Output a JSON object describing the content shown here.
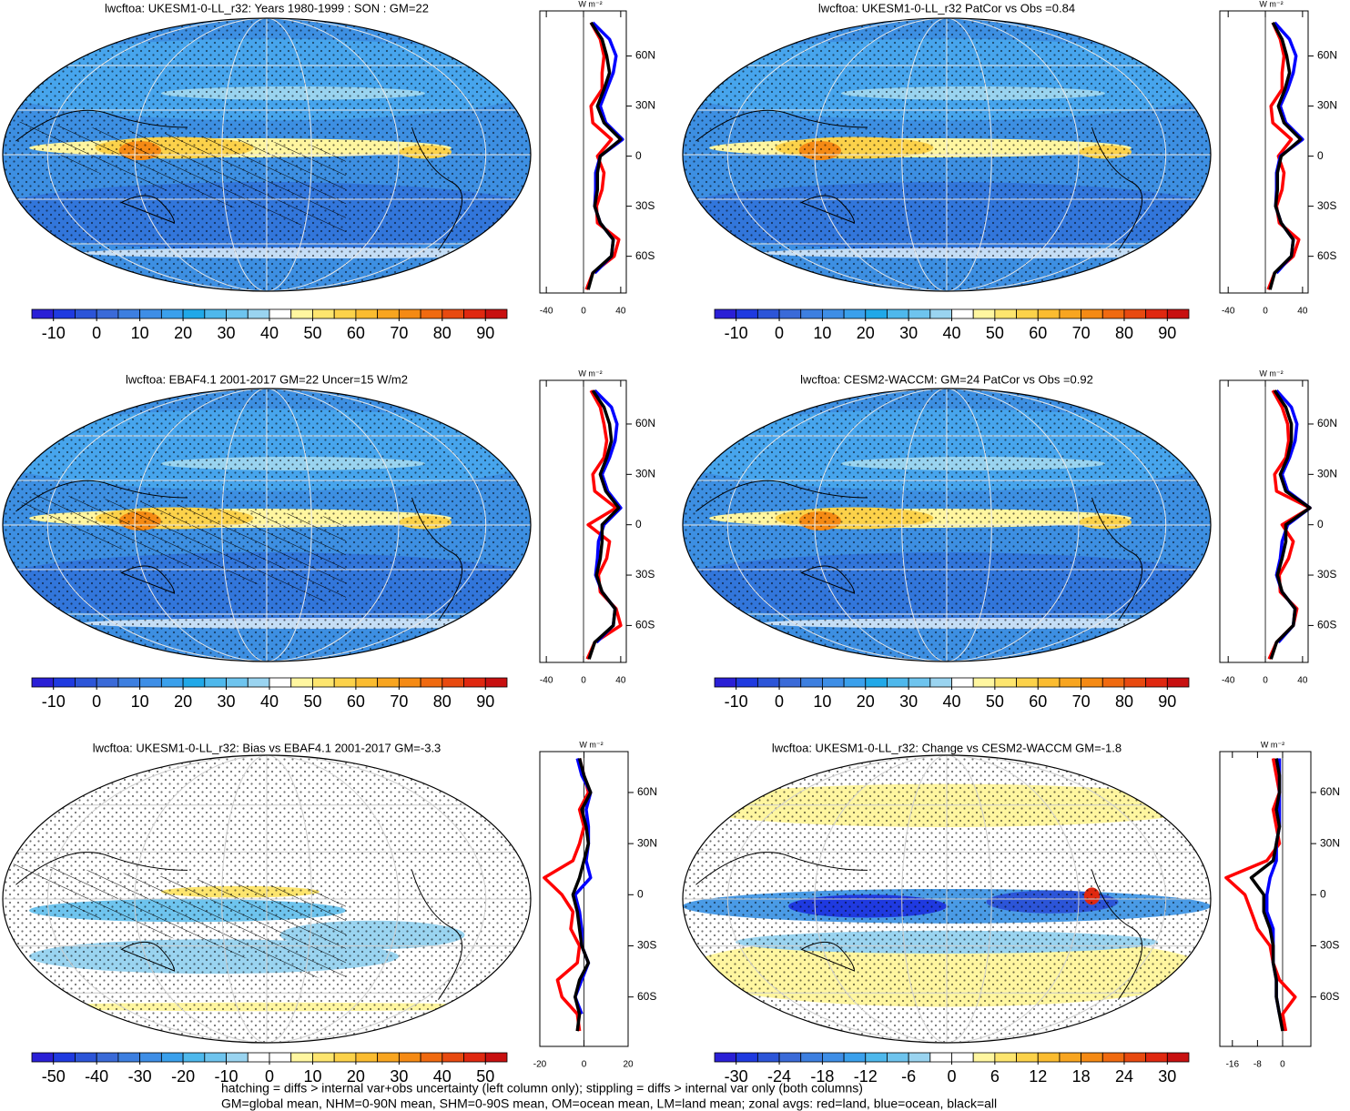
{
  "chart_data": [
    {
      "type": "map",
      "title": "lwcftoa: UKESM1-0-LL_r32: Years 1980-1999 : SON : GM=22",
      "colorbar": {
        "lim": [
          -15,
          95
        ],
        "ticks": [
          -10,
          0,
          10,
          20,
          30,
          40,
          50,
          60,
          70,
          80,
          90
        ],
        "colors": [
          "#2a1fd6",
          "#1f3ae0",
          "#2c55d8",
          "#3a6ad8",
          "#3d7fe0",
          "#3e8ee6",
          "#3aa0ec",
          "#20a8e8",
          "#4eb8ec",
          "#6ec4ee",
          "#9ad4f0",
          "#ffffff",
          "#fff6a0",
          "#fde56e",
          "#fcd24a",
          "#fbbc30",
          "#f8a520",
          "#f58a14",
          "#f06a10",
          "#e84a10",
          "#e02810",
          "#c81010"
        ]
      },
      "zonal": {
        "type": "line",
        "unit": "W m⁻²",
        "y": [
          -80,
          -70,
          -60,
          -50,
          -40,
          -30,
          -20,
          -10,
          0,
          10,
          20,
          30,
          40,
          50,
          60,
          70,
          80
        ],
        "xlim": [
          -47,
          46
        ],
        "xticks": [
          -40,
          0,
          40
        ],
        "ylim": [
          -82,
          87
        ],
        "yticks": [
          {
            "value": 60,
            "label": "60N"
          },
          {
            "value": 30,
            "label": "30N"
          },
          0,
          {
            "value": -30,
            "label": "30S"
          },
          {
            "value": -60,
            "label": "60S"
          }
        ],
        "series": [
          {
            "color": "#ff0000",
            "values": [
              3,
              10,
              33,
              38,
              15,
              14,
              20,
              22,
              15,
              30,
              10,
              8,
              20,
              20,
              22,
              18,
              8
            ]
          },
          {
            "color": "#0000ff",
            "values": [
              null,
              12,
              30,
              32,
              18,
              12,
              13,
              13,
              18,
              42,
              24,
              18,
              25,
              32,
              35,
              28,
              10
            ]
          },
          {
            "color": "#000000",
            "values": [
              5,
              10,
              30,
              32,
              18,
              12,
              15,
              15,
              18,
              40,
              22,
              15,
              22,
              28,
              25,
              20,
              8
            ]
          }
        ]
      }
    },
    {
      "type": "map",
      "title": "lwcftoa: UKESM1-0-LL_r32 PatCor vs Obs =0.84",
      "colorbar": {
        "lim": [
          -15,
          95
        ],
        "ticks": [
          -10,
          0,
          10,
          20,
          30,
          40,
          50,
          60,
          70,
          80,
          90
        ],
        "colors": [
          "#2a1fd6",
          "#1f3ae0",
          "#2c55d8",
          "#3a6ad8",
          "#3d7fe0",
          "#3e8ee6",
          "#3aa0ec",
          "#20a8e8",
          "#4eb8ec",
          "#6ec4ee",
          "#9ad4f0",
          "#ffffff",
          "#fff6a0",
          "#fde56e",
          "#fcd24a",
          "#fbbc30",
          "#f8a520",
          "#f58a14",
          "#f06a10",
          "#e84a10",
          "#e02810",
          "#c81010"
        ]
      },
      "zonal": {
        "type": "line",
        "unit": "W m⁻²",
        "y": [
          -80,
          -70,
          -60,
          -50,
          -40,
          -30,
          -20,
          -10,
          0,
          10,
          20,
          30,
          40,
          50,
          60,
          70,
          80
        ],
        "xlim": [
          -49,
          46
        ],
        "xticks": [
          -40,
          0,
          40
        ],
        "ylim": [
          -82,
          87
        ],
        "yticks": [
          {
            "value": 60,
            "label": "60N"
          },
          {
            "value": 30,
            "label": "30N"
          },
          0,
          {
            "value": -30,
            "label": "30S"
          },
          {
            "value": -60,
            "label": "60S"
          }
        ],
        "series": [
          {
            "color": "#ff0000",
            "values": [
              3,
              10,
              30,
              36,
              15,
              12,
              18,
              20,
              14,
              28,
              8,
              6,
              18,
              18,
              20,
              16,
              8
            ]
          },
          {
            "color": "#0000ff",
            "values": [
              null,
              12,
              28,
              30,
              17,
              11,
              12,
              12,
              16,
              40,
              22,
              16,
              24,
              30,
              33,
              26,
              10
            ]
          },
          {
            "color": "#000000",
            "values": [
              5,
              10,
              28,
              30,
              17,
              11,
              13,
              13,
              17,
              38,
              20,
              14,
              21,
              26,
              23,
              18,
              8
            ]
          }
        ]
      }
    },
    {
      "type": "map",
      "title": "lwcftoa: EBAF4.1 2001-2017 GM=22 Uncer=15 W/m2",
      "colorbar": {
        "lim": [
          -15,
          95
        ],
        "ticks": [
          -10,
          0,
          10,
          20,
          30,
          40,
          50,
          60,
          70,
          80,
          90
        ],
        "colors": [
          "#2a1fd6",
          "#1f3ae0",
          "#2c55d8",
          "#3a6ad8",
          "#3d7fe0",
          "#3e8ee6",
          "#3aa0ec",
          "#20a8e8",
          "#4eb8ec",
          "#6ec4ee",
          "#9ad4f0",
          "#ffffff",
          "#fff6a0",
          "#fde56e",
          "#fcd24a",
          "#fbbc30",
          "#f8a520",
          "#f58a14",
          "#f06a10",
          "#e84a10",
          "#e02810",
          "#c81010"
        ]
      },
      "zonal": {
        "type": "line",
        "unit": "W m⁻²",
        "y": [
          -80,
          -70,
          -60,
          -50,
          -40,
          -30,
          -20,
          -10,
          0,
          10,
          20,
          30,
          40,
          50,
          60,
          70,
          80
        ],
        "xlim": [
          -47,
          46
        ],
        "xticks": [
          -40,
          0,
          40
        ],
        "ylim": [
          -82,
          86
        ],
        "yticks": [
          {
            "value": 60,
            "label": "60N"
          },
          {
            "value": 30,
            "label": "30N"
          },
          0,
          {
            "value": -30,
            "label": "30S"
          },
          {
            "value": -60,
            "label": "60S"
          }
        ],
        "series": [
          {
            "color": "#ff0000",
            "values": [
              4,
              12,
              40,
              35,
              18,
              16,
              25,
              28,
              5,
              35,
              12,
              10,
              22,
              25,
              22,
              18,
              8
            ]
          },
          {
            "color": "#0000ff",
            "values": [
              null,
              14,
              32,
              34,
              20,
              13,
              15,
              16,
              22,
              40,
              26,
              20,
              28,
              34,
              36,
              30,
              12
            ]
          },
          {
            "color": "#000000",
            "values": [
              6,
              12,
              32,
              34,
              20,
              14,
              18,
              20,
              20,
              38,
              24,
              18,
              25,
              30,
              28,
              22,
              10
            ]
          }
        ]
      }
    },
    {
      "type": "map",
      "title": "lwcftoa: CESM2-WACCM: GM=24 PatCor vs Obs =0.92",
      "colorbar": {
        "lim": [
          -15,
          95
        ],
        "ticks": [
          -10,
          0,
          10,
          20,
          30,
          40,
          50,
          60,
          70,
          80,
          90
        ],
        "colors": [
          "#2a1fd6",
          "#1f3ae0",
          "#2c55d8",
          "#3a6ad8",
          "#3d7fe0",
          "#3e8ee6",
          "#3aa0ec",
          "#20a8e8",
          "#4eb8ec",
          "#6ec4ee",
          "#9ad4f0",
          "#ffffff",
          "#fff6a0",
          "#fde56e",
          "#fcd24a",
          "#fbbc30",
          "#f8a520",
          "#f58a14",
          "#f06a10",
          "#e84a10",
          "#e02810",
          "#c81010"
        ]
      },
      "zonal": {
        "type": "line",
        "unit": "W m⁻²",
        "y": [
          -80,
          -70,
          -60,
          -50,
          -40,
          -30,
          -20,
          -10,
          0,
          10,
          20,
          30,
          40,
          50,
          60,
          70,
          80
        ],
        "xlim": [
          -49,
          46
        ],
        "xticks": [
          -40,
          0,
          40
        ],
        "ylim": [
          -82,
          86
        ],
        "yticks": [
          {
            "value": 60,
            "label": "60N"
          },
          {
            "value": 30,
            "label": "30N"
          },
          0,
          {
            "value": -30,
            "label": "30S"
          },
          {
            "value": -60,
            "label": "60S"
          }
        ],
        "series": [
          {
            "color": "#ff0000",
            "values": [
              4,
              12,
              30,
              34,
              16,
              15,
              25,
              30,
              18,
              48,
              12,
              10,
              22,
              25,
              24,
              18,
              8
            ]
          },
          {
            "color": "#0000ff",
            "values": [
              null,
              14,
              30,
              32,
              18,
              12,
              16,
              18,
              24,
              48,
              24,
              18,
              26,
              32,
              34,
              28,
              12
            ]
          },
          {
            "color": "#000000",
            "values": [
              6,
              12,
              30,
              32,
              18,
              13,
              18,
              22,
              22,
              48,
              22,
              16,
              24,
              28,
              28,
              22,
              10
            ]
          }
        ]
      }
    },
    {
      "type": "map",
      "title": "lwcftoa: UKESM1-0-LL_r32: Bias vs EBAF4.1 2001-2017  GM=-3.3",
      "colorbar": {
        "lim": [
          -55,
          55
        ],
        "ticks": [
          -50,
          -40,
          -30,
          -20,
          -10,
          0,
          10,
          20,
          30,
          40,
          50
        ],
        "colors": [
          "#2a1fd6",
          "#1f3ae0",
          "#2c55d8",
          "#3a6ad8",
          "#3d7fe0",
          "#3e8ee6",
          "#3aa0ec",
          "#4eb8ec",
          "#6ec4ee",
          "#9ad4f0",
          "#ffffff",
          "#ffffff",
          "#fff6a0",
          "#fde56e",
          "#fcd24a",
          "#fbbc30",
          "#f8a520",
          "#f58a14",
          "#f06a10",
          "#e84a10",
          "#e02810",
          "#c81010"
        ]
      },
      "zonal": {
        "type": "line",
        "unit": "W m⁻²",
        "y": [
          -80,
          -70,
          -60,
          -50,
          -40,
          -30,
          -20,
          -10,
          0,
          10,
          20,
          30,
          40,
          50,
          60,
          70,
          80
        ],
        "xlim": [
          -20,
          20
        ],
        "xticks": [
          -20,
          0,
          20
        ],
        "ylim": [
          -89,
          84
        ],
        "yticks": [
          {
            "value": 60,
            "label": "60N"
          },
          {
            "value": 30,
            "label": "30N"
          },
          0,
          {
            "value": -30,
            "label": "30S"
          },
          {
            "value": -60,
            "label": "60S"
          }
        ],
        "series": [
          {
            "color": "#ff0000",
            "values": [
              -2,
              -3,
              -10,
              -12,
              -3,
              -2,
              -6,
              -5,
              -10,
              -18,
              -5,
              -2,
              0,
              -2,
              2,
              0,
              -2
            ]
          },
          {
            "color": "#0000ff",
            "values": [
              null,
              -1,
              -4,
              -1,
              2,
              -1,
              -1,
              -2,
              -4,
              3,
              1,
              2,
              2,
              1,
              3,
              -1,
              -3
            ]
          },
          {
            "color": "#000000",
            "values": [
              -3,
              -2,
              -4,
              -2,
              2,
              -1,
              -2,
              -3,
              -5,
              -2,
              0,
              2,
              1,
              -1,
              3,
              0,
              -2
            ]
          }
        ]
      }
    },
    {
      "type": "map",
      "title": "lwcftoa: UKESM1-0-LL_r32: Change vs CESM2-WACCM GM=-1.8",
      "colorbar": {
        "lim": [
          -33,
          33
        ],
        "ticks": [
          -30,
          -24,
          -18,
          -12,
          -6,
          0,
          6,
          12,
          18,
          24,
          30
        ],
        "colors": [
          "#2a1fd6",
          "#1f3ae0",
          "#2c55d8",
          "#3a6ad8",
          "#3d7fe0",
          "#3e8ee6",
          "#3aa0ec",
          "#4eb8ec",
          "#6ec4ee",
          "#9ad4f0",
          "#ffffff",
          "#ffffff",
          "#fff6a0",
          "#fde56e",
          "#fcd24a",
          "#fbbc30",
          "#f8a520",
          "#f58a14",
          "#f06a10",
          "#e84a10",
          "#e02810",
          "#c81010"
        ]
      },
      "zonal": {
        "type": "line",
        "unit": "W m⁻²",
        "y": [
          -80,
          -70,
          -60,
          -50,
          -40,
          -30,
          -20,
          -10,
          0,
          10,
          20,
          30,
          40,
          50,
          60,
          70,
          80
        ],
        "xlim": [
          -20,
          9
        ],
        "xticks": [
          -16,
          -8,
          0
        ],
        "ylim": [
          -89,
          84
        ],
        "yticks": [
          {
            "value": 60,
            "label": "60N"
          },
          {
            "value": 30,
            "label": "30N"
          },
          0,
          {
            "value": -30,
            "label": "30S"
          },
          {
            "value": -60,
            "label": "60S"
          }
        ],
        "series": [
          {
            "color": "#ff0000",
            "values": [
              1,
              0,
              4,
              -1,
              -3,
              -4,
              -8,
              -10,
              -12,
              -18,
              -5,
              -1,
              -2,
              -3,
              -1,
              -2,
              -3
            ]
          },
          {
            "color": "#0000ff",
            "values": [
              null,
              -1,
              -2,
              -2,
              -3,
              -3,
              -3,
              -5,
              -5,
              -4,
              -2,
              -2,
              -1,
              -1,
              -1,
              -1,
              -1
            ]
          },
          {
            "color": "#000000",
            "values": [
              0,
              -1,
              -2,
              -2,
              -3,
              -3,
              -4,
              -6,
              -6,
              -10,
              -3,
              -2,
              -1,
              -2,
              -1,
              -1,
              -2
            ]
          }
        ]
      }
    }
  ],
  "notes": [
    "hatching = diffs > internal var+obs uncertainty (left column only); stippling = diffs > internal var only (both columns)",
    "GM=global mean, NHM=0-90N mean, SHM=0-90S mean, OM=ocean mean, LM=land mean; zonal avgs: red=land, blue=ocean, black=all"
  ]
}
